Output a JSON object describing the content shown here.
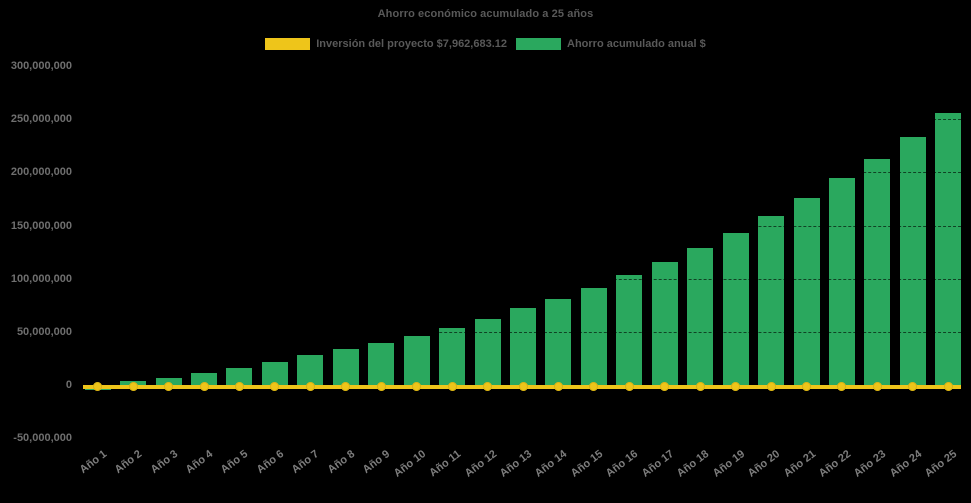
{
  "title": "Ahorro económico acumulado a 25 años",
  "legend": {
    "items": [
      {
        "id": "inversion",
        "label": "Inversión del proyecto $7,962,683.12",
        "color": "#eec51a"
      },
      {
        "id": "ahorro",
        "label": "Ahorro acumulado anual $",
        "color": "#2aa85e"
      }
    ]
  },
  "colors": {
    "background": "#000000",
    "bar_fill": "#2aa85e",
    "line_color": "#eec51a",
    "marker_border": "#d8b214",
    "title_text": "#595959",
    "ytick_text": "#6f6f6f",
    "xtick_text": "#7d7d7d"
  },
  "chart_data": {
    "type": "bar",
    "title": "Ahorro económico acumulado a 25 años",
    "categories": [
      "Año 1",
      "Año 2",
      "Año 3",
      "Año 4",
      "Año 5",
      "Año 6",
      "Año 7",
      "Año 8",
      "Año 9",
      "Año 10",
      "Año 11",
      "Año 12",
      "Año 13",
      "Año 14",
      "Año 15",
      "Año 16",
      "Año 17",
      "Año 18",
      "Año 19",
      "Año 20",
      "Año 21",
      "Año 22",
      "Año 23",
      "Año 24",
      "Año 25"
    ],
    "series": [
      {
        "name": "Ahorro acumulado anual $",
        "type": "bar",
        "color": "#2aa85e",
        "values": [
          -5000000,
          4000000,
          7000000,
          11500000,
          16000000,
          21500000,
          28500000,
          33500000,
          39500000,
          46500000,
          54000000,
          62500000,
          72000000,
          81000000,
          91500000,
          103500000,
          115500000,
          128500000,
          143000000,
          159000000,
          175500000,
          194500000,
          213000000,
          233500000,
          256000000
        ]
      },
      {
        "name": "Inversión del proyecto $7,962,683.12",
        "type": "line",
        "color": "#eec51a",
        "constant_value": 7962683.12,
        "marker": "circle"
      }
    ],
    "xlabel": "",
    "ylabel": "",
    "ylim": [
      -50000000,
      300000000
    ],
    "ytick_step": 50000000,
    "yticks": [
      {
        "value": 300000000,
        "label": "300,000,000"
      },
      {
        "value": 250000000,
        "label": "250,000,000"
      },
      {
        "value": 200000000,
        "label": "200,000,000"
      },
      {
        "value": 150000000,
        "label": "150,000,000"
      },
      {
        "value": 100000000,
        "label": "100,000,000"
      },
      {
        "value": 50000000,
        "label": "50,000,000"
      },
      {
        "value": 0,
        "label": "0"
      },
      {
        "value": -50000000,
        "label": "-50,000,000"
      }
    ],
    "legend_position": "top-center",
    "grid": "horizontal-dashed-dark-over-bars",
    "background": "black",
    "x_label_rotation_deg": -37
  }
}
